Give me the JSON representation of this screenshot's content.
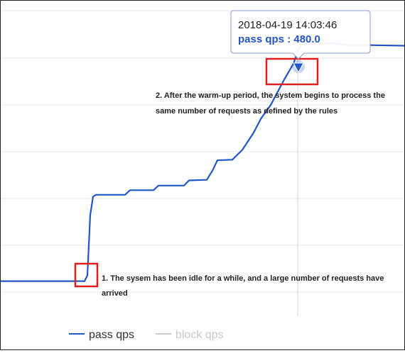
{
  "chart_data": {
    "type": "line",
    "xlabel": "",
    "ylabel": "",
    "grid": "horizontal",
    "legend": {
      "placement": "bottom-left",
      "items": [
        {
          "name": "pass qps",
          "color": "#2256c9",
          "active": true
        },
        {
          "name": "block qps",
          "color": "#cccccc",
          "active": false
        }
      ]
    },
    "series": [
      {
        "name": "pass qps",
        "color": "#2256c9",
        "points": [
          [
            0,
            130
          ],
          [
            60,
            130
          ],
          [
            110,
            130
          ],
          [
            118,
            130
          ],
          [
            122,
            140
          ],
          [
            126,
            245
          ],
          [
            130,
            277
          ],
          [
            134,
            280
          ],
          [
            175,
            280
          ],
          [
            182,
            288
          ],
          [
            215,
            288
          ],
          [
            222,
            296
          ],
          [
            258,
            296
          ],
          [
            265,
            305
          ],
          [
            290,
            306
          ],
          [
            298,
            322
          ],
          [
            305,
            340
          ],
          [
            326,
            341
          ],
          [
            340,
            358
          ],
          [
            356,
            388
          ],
          [
            366,
            412
          ],
          [
            380,
            436
          ],
          [
            398,
            478
          ],
          [
            412,
            508
          ],
          [
            419,
            533
          ],
          [
            424,
            541
          ],
          [
            440,
            543
          ],
          [
            470,
            543
          ],
          [
            490,
            540
          ],
          [
            520,
            540
          ],
          [
            568,
            539
          ]
        ]
      }
    ],
    "tooltip": {
      "time": "2018-04-19 14:03:46",
      "label": "pass qps : 480.0"
    },
    "annotations": [
      {
        "lines": [
          "2. After the warm-up period, the system begins to process the",
          "same number of requests as defined by the rules"
        ]
      },
      {
        "lines": [
          "1. The sysem has been idle for a while, and a large number of requests have",
          "arrived"
        ]
      }
    ],
    "highlight_color": "#e02020"
  }
}
